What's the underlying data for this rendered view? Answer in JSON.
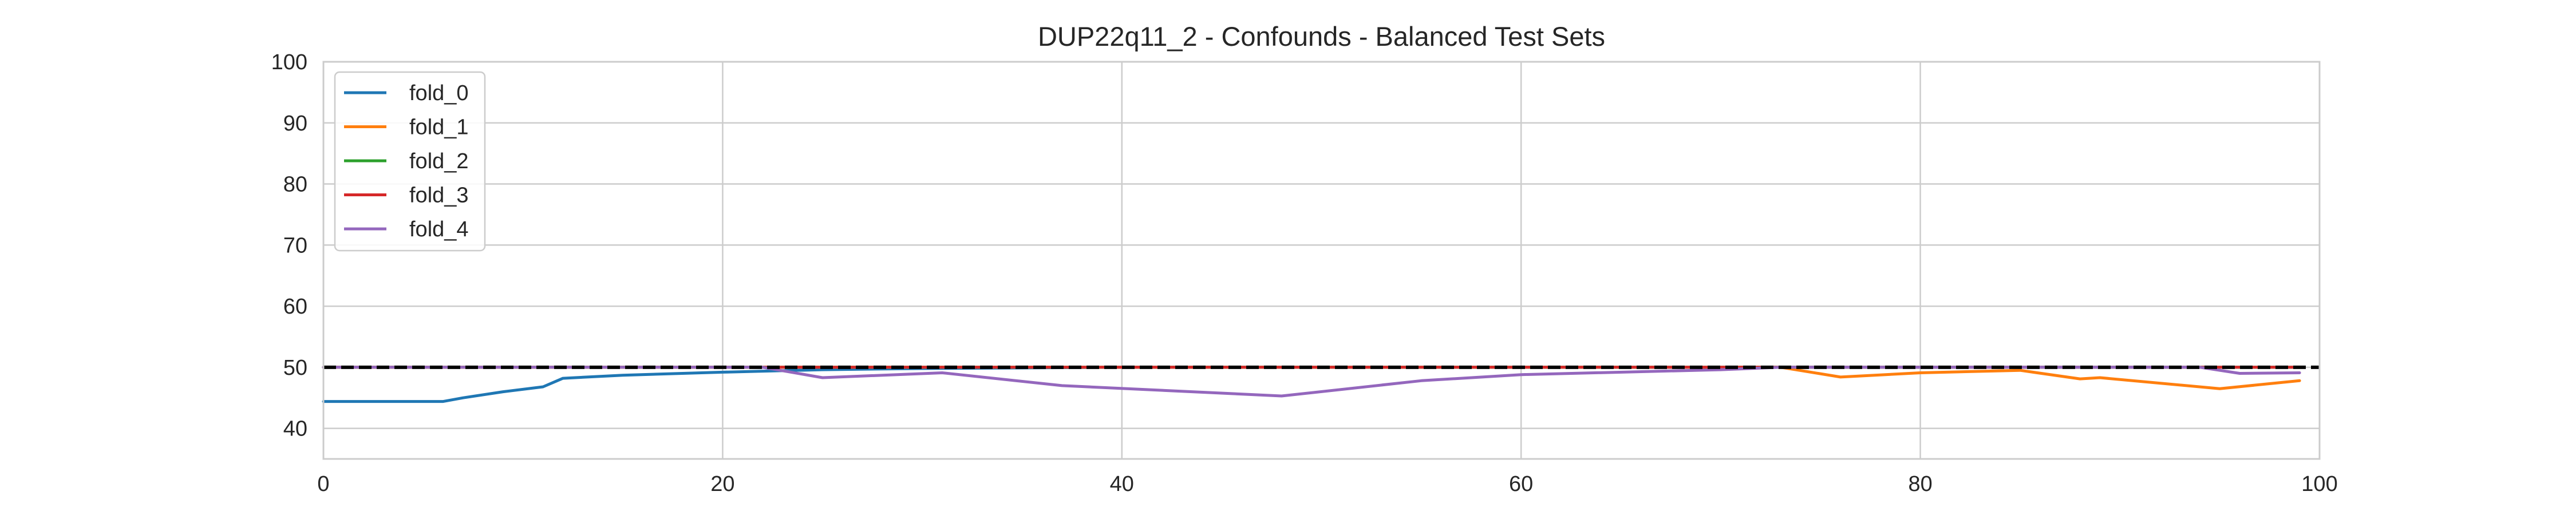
{
  "chart_data": {
    "type": "line",
    "title": "DUP22q11_2 - Confounds - Balanced Test Sets",
    "xlabel": "",
    "ylabel": "",
    "xlim": [
      0,
      100
    ],
    "ylim": [
      35,
      100
    ],
    "xticks": [
      0,
      20,
      40,
      60,
      80,
      100
    ],
    "yticks": [
      40,
      50,
      60,
      70,
      80,
      90,
      100
    ],
    "grid": true,
    "legend_position": "top-left",
    "reference_line": {
      "y": 50,
      "style": "dashed",
      "color": "#000000"
    },
    "series": [
      {
        "name": "fold_0",
        "color": "#1f77b4",
        "points": [
          [
            0,
            44.4
          ],
          [
            6,
            44.4
          ],
          [
            7,
            45.0
          ],
          [
            9,
            46.0
          ],
          [
            11,
            46.8
          ],
          [
            12,
            48.2
          ],
          [
            15,
            48.7
          ],
          [
            20,
            49.2
          ],
          [
            25,
            49.6
          ],
          [
            30,
            49.8
          ],
          [
            40,
            50.0
          ],
          [
            99,
            50.0
          ]
        ]
      },
      {
        "name": "fold_1",
        "color": "#ff7f0e",
        "points": [
          [
            0,
            50.0
          ],
          [
            73,
            50.0
          ],
          [
            76,
            48.4
          ],
          [
            80,
            49.1
          ],
          [
            85,
            49.5
          ],
          [
            88,
            48.1
          ],
          [
            89,
            48.3
          ],
          [
            95,
            46.5
          ],
          [
            99,
            47.8
          ]
        ]
      },
      {
        "name": "fold_2",
        "color": "#2ca02c",
        "points": [
          [
            0,
            50.0
          ],
          [
            99,
            50.0
          ]
        ]
      },
      {
        "name": "fold_3",
        "color": "#d62728",
        "points": [
          [
            0,
            50.0
          ],
          [
            99,
            50.0
          ]
        ]
      },
      {
        "name": "fold_4",
        "color": "#9467bd",
        "points": [
          [
            0,
            50.0
          ],
          [
            22,
            50.0
          ],
          [
            25,
            48.3
          ],
          [
            31,
            49.1
          ],
          [
            37,
            47.0
          ],
          [
            48,
            45.3
          ],
          [
            55,
            47.8
          ],
          [
            60,
            48.8
          ],
          [
            70,
            49.6
          ],
          [
            73,
            50.0
          ],
          [
            94,
            50.0
          ],
          [
            96,
            49.0
          ],
          [
            99,
            49.1
          ]
        ]
      }
    ]
  }
}
